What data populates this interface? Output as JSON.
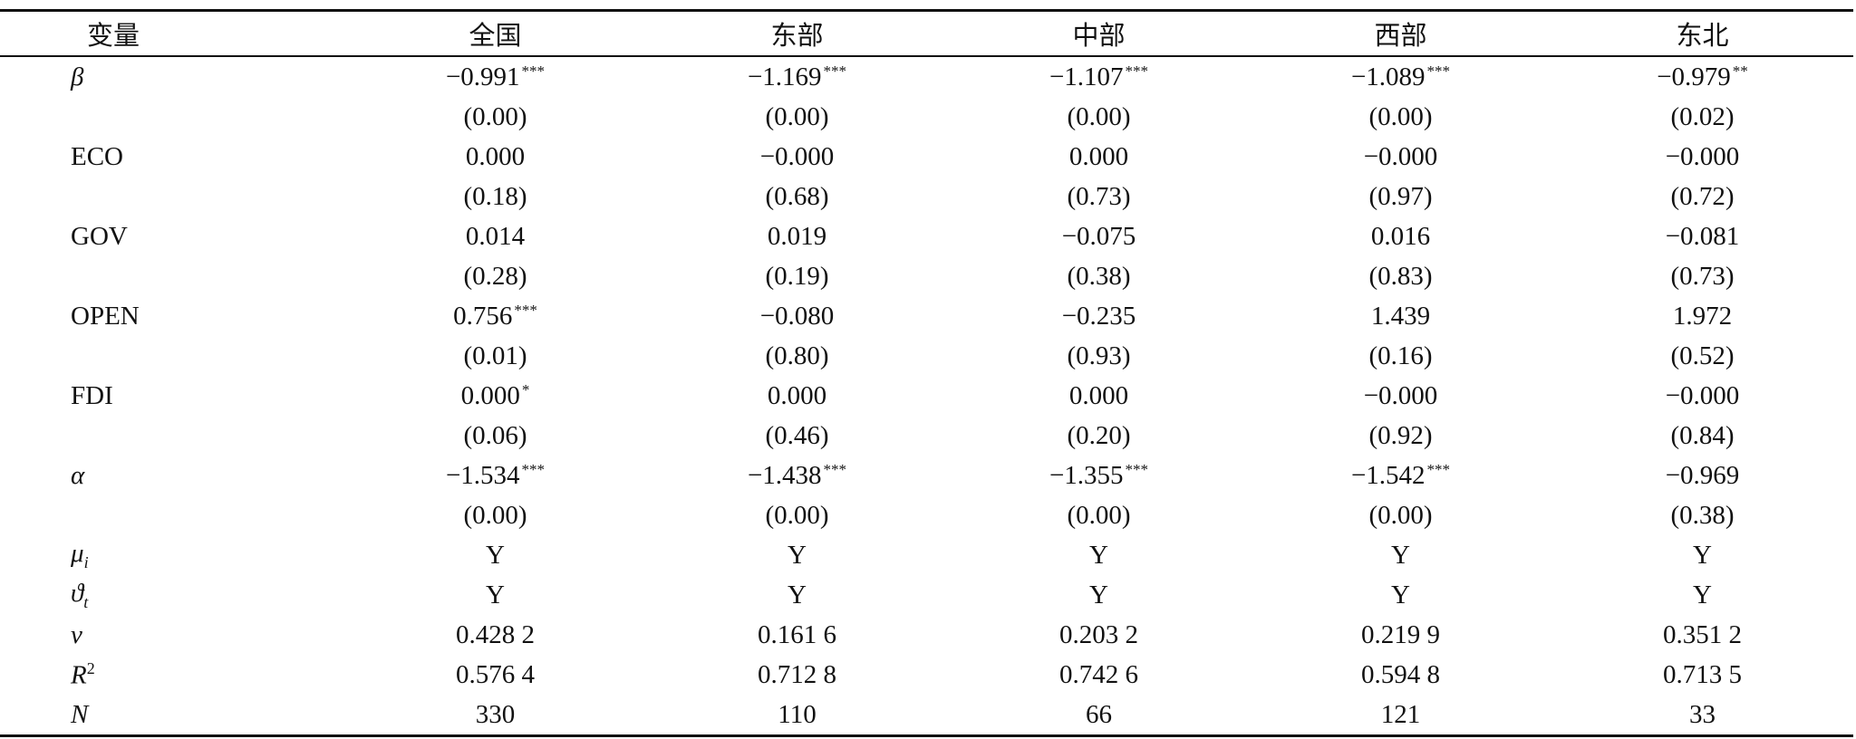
{
  "table": {
    "header": [
      "变量",
      "全国",
      "东部",
      "中部",
      "西部",
      "东北"
    ],
    "rows": [
      {
        "label": {
          "base": "β"
        },
        "cells": [
          {
            "text": "−0.991",
            "sig": "***"
          },
          {
            "text": "−1.169",
            "sig": "***"
          },
          {
            "text": "−1.107",
            "sig": "***"
          },
          {
            "text": "−1.089",
            "sig": "***"
          },
          {
            "text": "−0.979",
            "sig": "**"
          }
        ]
      },
      {
        "cells": [
          {
            "text": "(0.00)"
          },
          {
            "text": "(0.00)"
          },
          {
            "text": "(0.00)"
          },
          {
            "text": "(0.00)"
          },
          {
            "text": "(0.02)"
          }
        ]
      },
      {
        "label": {
          "base": "ECO"
        },
        "cells": [
          {
            "text": "0.000"
          },
          {
            "text": "−0.000"
          },
          {
            "text": "0.000"
          },
          {
            "text": "−0.000"
          },
          {
            "text": "−0.000"
          }
        ]
      },
      {
        "cells": [
          {
            "text": "(0.18)"
          },
          {
            "text": "(0.68)"
          },
          {
            "text": "(0.73)"
          },
          {
            "text": "(0.97)"
          },
          {
            "text": "(0.72)"
          }
        ]
      },
      {
        "label": {
          "base": "GOV"
        },
        "cells": [
          {
            "text": "0.014"
          },
          {
            "text": "0.019"
          },
          {
            "text": "−0.075"
          },
          {
            "text": "0.016"
          },
          {
            "text": "−0.081"
          }
        ]
      },
      {
        "cells": [
          {
            "text": "(0.28)"
          },
          {
            "text": "(0.19)"
          },
          {
            "text": "(0.38)"
          },
          {
            "text": "(0.83)"
          },
          {
            "text": "(0.73)"
          }
        ]
      },
      {
        "label": {
          "base": "OPEN"
        },
        "cells": [
          {
            "text": "0.756",
            "sig": "***"
          },
          {
            "text": "−0.080"
          },
          {
            "text": "−0.235"
          },
          {
            "text": "1.439"
          },
          {
            "text": "1.972"
          }
        ]
      },
      {
        "cells": [
          {
            "text": "(0.01)"
          },
          {
            "text": "(0.80)"
          },
          {
            "text": "(0.93)"
          },
          {
            "text": "(0.16)"
          },
          {
            "text": "(0.52)"
          }
        ]
      },
      {
        "label": {
          "base": "FDI"
        },
        "cells": [
          {
            "text": "0.000",
            "sig": "*"
          },
          {
            "text": "0.000"
          },
          {
            "text": "0.000"
          },
          {
            "text": "−0.000"
          },
          {
            "text": "−0.000"
          }
        ]
      },
      {
        "cells": [
          {
            "text": "(0.06)"
          },
          {
            "text": "(0.46)"
          },
          {
            "text": "(0.20)"
          },
          {
            "text": "(0.92)"
          },
          {
            "text": "(0.84)"
          }
        ]
      },
      {
        "label": {
          "base": "α"
        },
        "cells": [
          {
            "text": "−1.534",
            "sig": "***"
          },
          {
            "text": "−1.438",
            "sig": "***"
          },
          {
            "text": "−1.355",
            "sig": "***"
          },
          {
            "text": "−1.542",
            "sig": "***"
          },
          {
            "text": "−0.969"
          }
        ]
      },
      {
        "cells": [
          {
            "text": "(0.00)"
          },
          {
            "text": "(0.00)"
          },
          {
            "text": "(0.00)"
          },
          {
            "text": "(0.00)"
          },
          {
            "text": "(0.38)"
          }
        ]
      },
      {
        "label": {
          "base": "μ",
          "sub": "i"
        },
        "cells": [
          {
            "text": "Y"
          },
          {
            "text": "Y"
          },
          {
            "text": "Y"
          },
          {
            "text": "Y"
          },
          {
            "text": "Y"
          }
        ]
      },
      {
        "label": {
          "base": "ϑ",
          "sub": "t"
        },
        "cells": [
          {
            "text": "Y"
          },
          {
            "text": "Y"
          },
          {
            "text": "Y"
          },
          {
            "text": "Y"
          },
          {
            "text": "Y"
          }
        ]
      },
      {
        "label": {
          "base": "v"
        },
        "cells": [
          {
            "text": "0.428 2"
          },
          {
            "text": "0.161 6"
          },
          {
            "text": "0.203 2"
          },
          {
            "text": "0.219 9"
          },
          {
            "text": "0.351 2"
          }
        ]
      },
      {
        "label": {
          "base": "R",
          "sup": "2"
        },
        "cells": [
          {
            "text": "0.576 4"
          },
          {
            "text": "0.712 8"
          },
          {
            "text": "0.742 6"
          },
          {
            "text": "0.594 8"
          },
          {
            "text": "0.713 5"
          }
        ]
      },
      {
        "label": {
          "base": "N"
        },
        "cells": [
          {
            "text": "330"
          },
          {
            "text": "110"
          },
          {
            "text": "66"
          },
          {
            "text": "121"
          },
          {
            "text": "33"
          }
        ]
      }
    ]
  }
}
